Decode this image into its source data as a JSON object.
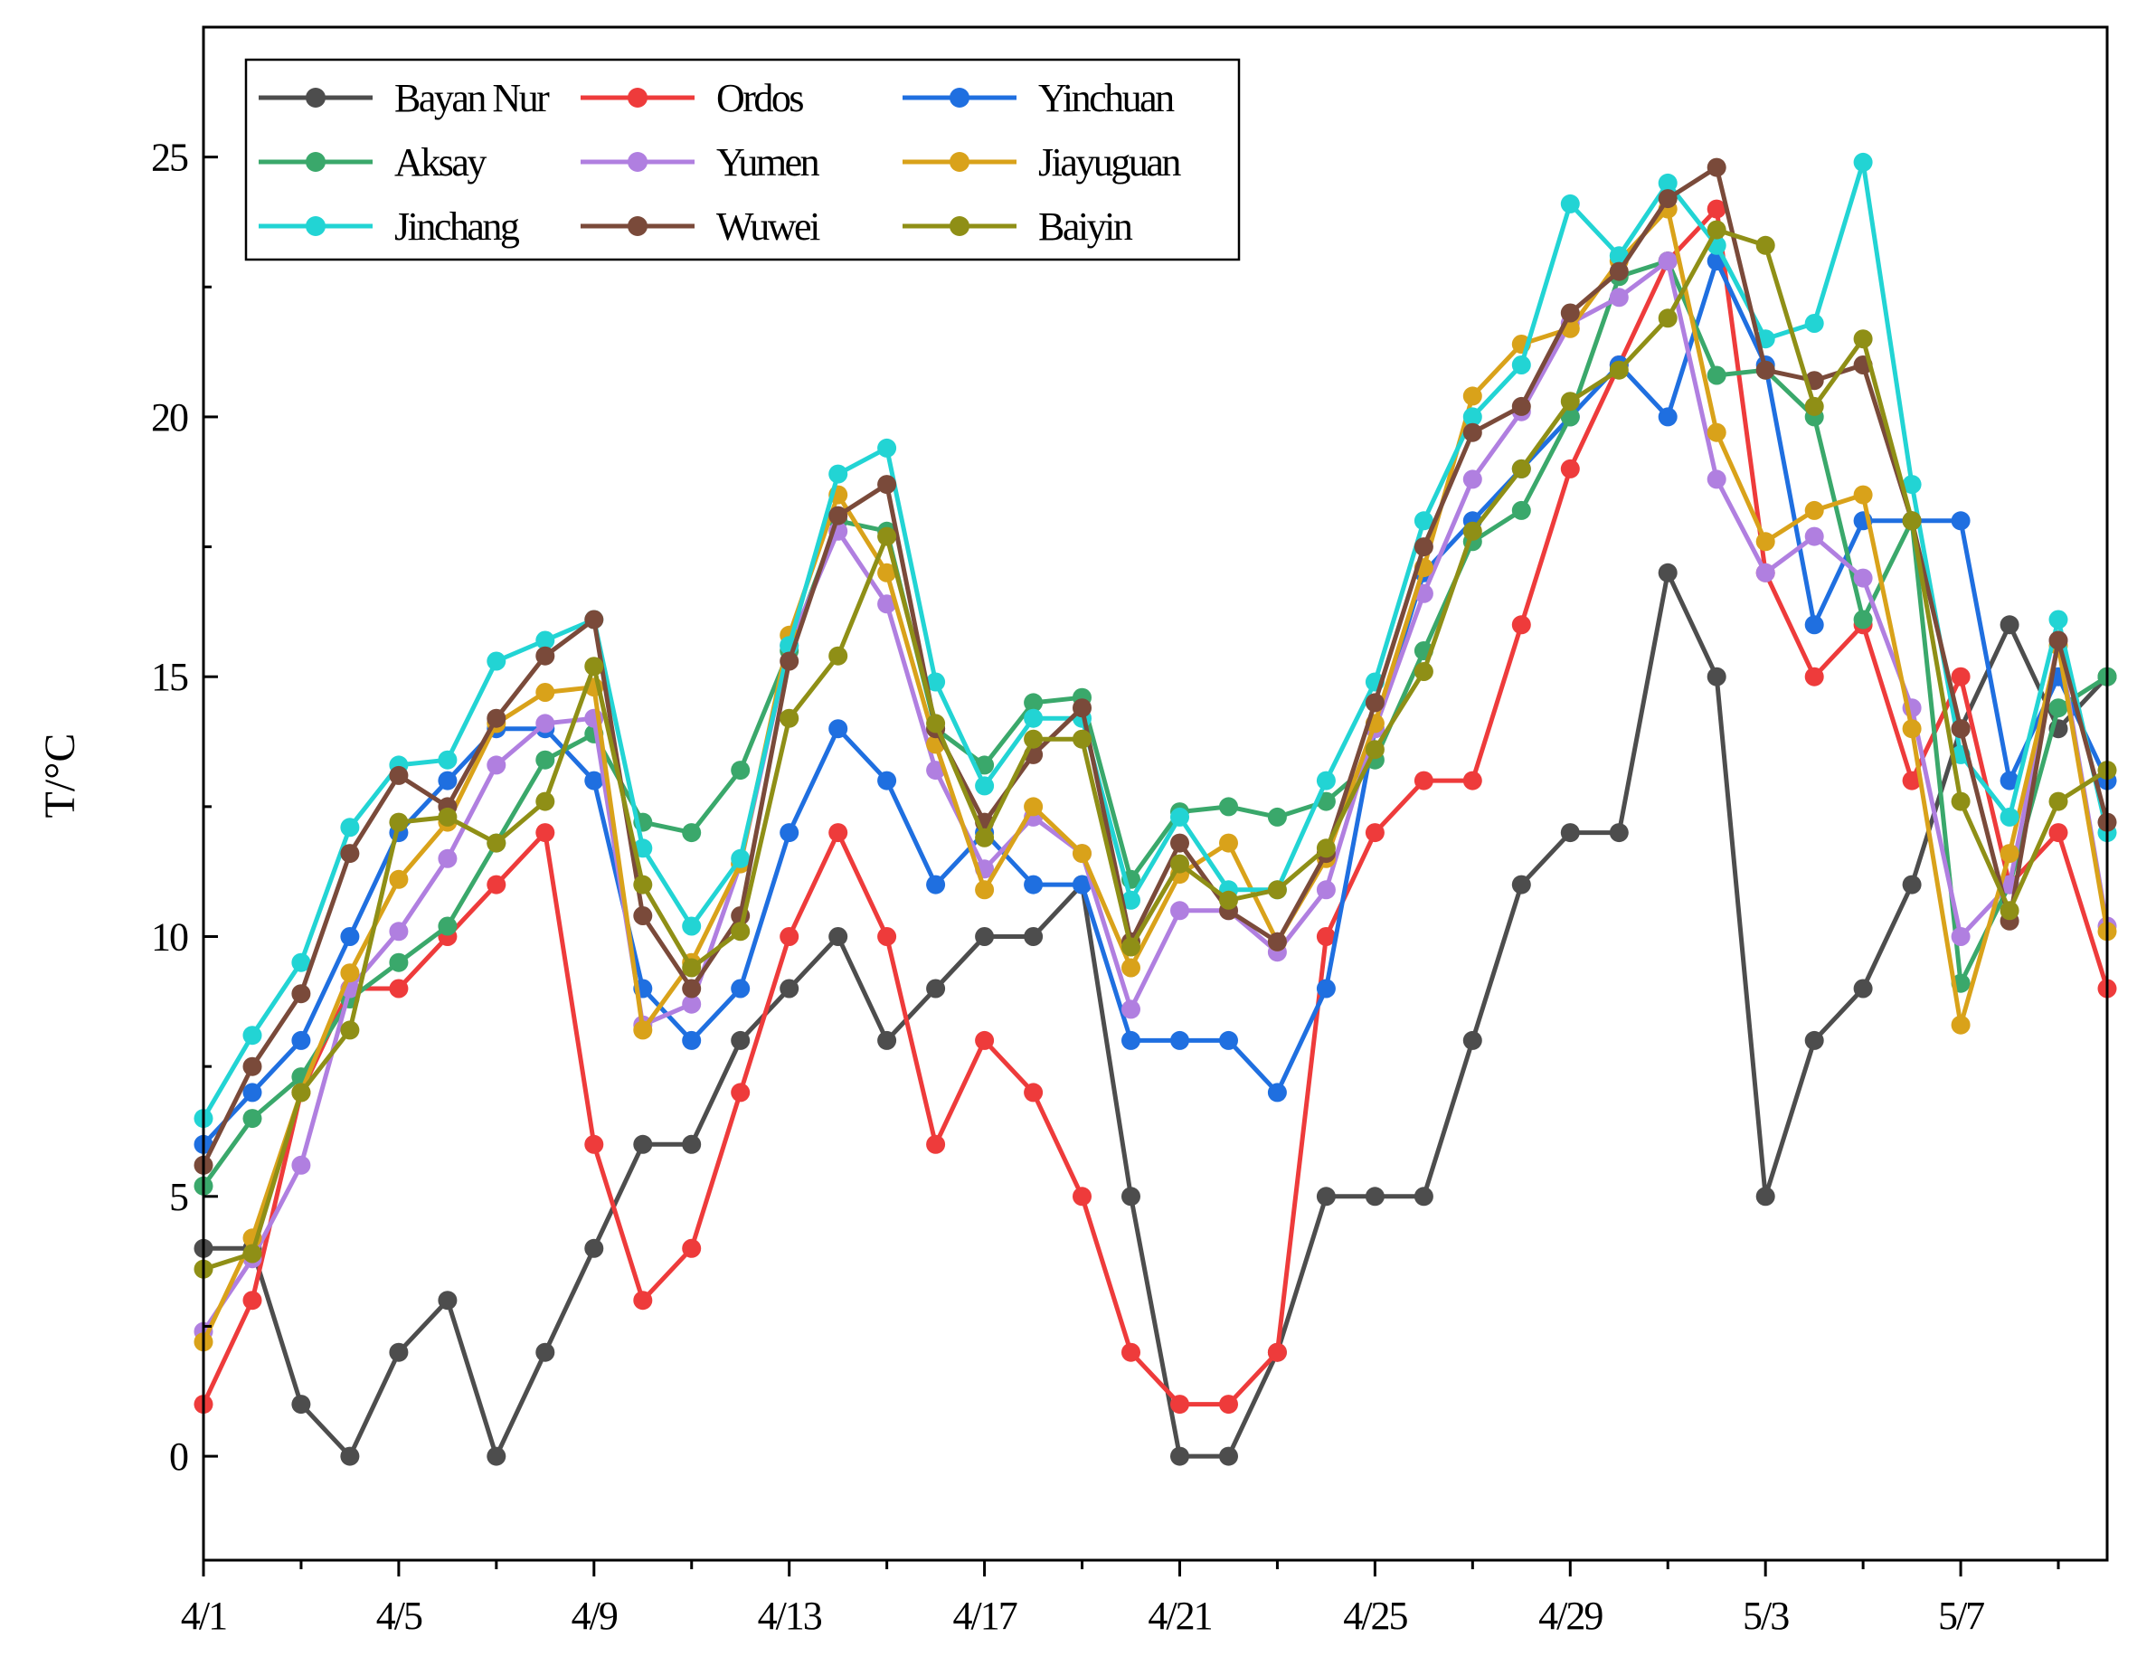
{
  "chart_data": {
    "type": "line",
    "title": "",
    "xlabel": "",
    "ylabel": "T/°C",
    "ylim": [
      -2,
      27.5
    ],
    "yticks": [
      0,
      5,
      10,
      15,
      20,
      25
    ],
    "xlim": [
      0,
      39
    ],
    "x_tick_labels": [
      "4/1",
      "4/5",
      "4/9",
      "4/13",
      "4/17",
      "4/21",
      "4/25",
      "4/29",
      "5/3",
      "5/7"
    ],
    "x_tick_positions": [
      0,
      4,
      8,
      12,
      16,
      20,
      24,
      28,
      32,
      36
    ],
    "legend_position": "top-left",
    "series": [
      {
        "name": "Bayan Nur",
        "color": "#4d4d4d",
        "values": [
          4,
          4,
          1,
          0,
          2,
          3,
          0,
          2,
          4,
          6,
          6,
          8,
          9,
          10,
          8,
          9,
          10,
          10,
          11,
          5,
          0,
          0,
          2,
          5,
          5,
          5,
          8,
          11,
          12,
          12,
          17,
          15,
          5,
          8,
          9,
          11,
          14,
          16,
          14,
          15
        ]
      },
      {
        "name": "Ordos",
        "color": "#ee3b3b",
        "values": [
          1,
          3,
          7,
          9,
          9,
          10,
          11,
          12,
          6,
          3,
          4,
          7,
          10,
          12,
          10,
          6,
          8,
          7,
          5,
          2,
          1,
          1,
          2,
          10,
          12,
          13,
          13,
          16,
          19,
          21,
          23,
          24,
          17,
          15,
          16,
          13,
          15,
          11,
          12,
          9
        ]
      },
      {
        "name": "Yinchuan",
        "color": "#1f6fe0",
        "values": [
          6,
          7,
          8,
          10,
          12,
          13,
          14,
          14,
          13,
          9,
          8,
          9,
          12,
          14,
          13,
          11,
          12,
          11,
          11,
          8,
          8,
          8,
          7,
          9,
          14,
          17,
          18,
          19,
          20,
          21,
          20,
          23,
          21,
          16,
          18,
          18,
          18,
          13,
          15,
          13
        ]
      },
      {
        "name": "Aksay",
        "color": "#3aa86b",
        "values": [
          5.2,
          6.5,
          7.3,
          8.8,
          9.5,
          10.2,
          11.8,
          13.4,
          13.9,
          12.2,
          12,
          13.2,
          15.5,
          18,
          17.8,
          14,
          13.3,
          14.5,
          14.6,
          11.1,
          12.4,
          12.5,
          12.3,
          12.6,
          13.4,
          15.5,
          17.6,
          18.2,
          20,
          22.7,
          23,
          20.8,
          20.9,
          20,
          16.1,
          18,
          9.1,
          11,
          14.4,
          15
        ]
      },
      {
        "name": "Yumen",
        "color": "#b07fe0",
        "values": [
          2.4,
          3.8,
          5.6,
          9,
          10.1,
          11.5,
          13.3,
          14.1,
          14.2,
          8.3,
          8.7,
          11.4,
          15.6,
          17.8,
          16.4,
          13.2,
          11.3,
          12.3,
          11.6,
          8.6,
          10.5,
          10.5,
          9.7,
          10.9,
          14,
          16.6,
          18.8,
          20.1,
          21.8,
          22.3,
          23,
          18.8,
          17,
          17.7,
          16.9,
          14.4,
          10,
          11,
          15.7,
          10.2
        ]
      },
      {
        "name": "Jiayuguan",
        "color": "#d9a21a",
        "values": [
          2.2,
          4.2,
          7,
          9.3,
          11.1,
          12.2,
          14.1,
          14.7,
          14.8,
          8.2,
          9.5,
          11.4,
          15.8,
          18.5,
          17,
          13.7,
          10.9,
          12.5,
          11.6,
          9.4,
          11.2,
          11.8,
          9.9,
          11.5,
          14.1,
          17.1,
          20.4,
          21.4,
          21.7,
          23,
          24,
          19.7,
          17.6,
          18.2,
          18.5,
          14,
          8.3,
          11.6,
          15.6,
          10.1
        ]
      },
      {
        "name": "Jinchang",
        "color": "#22d4d4",
        "values": [
          6.5,
          8.1,
          9.5,
          12.1,
          13.3,
          13.4,
          15.3,
          15.7,
          16.1,
          11.7,
          10.2,
          11.5,
          15.6,
          18.9,
          19.4,
          14.9,
          12.9,
          14.2,
          14.2,
          10.7,
          12.3,
          10.9,
          10.9,
          13,
          14.9,
          18,
          20,
          21,
          24.1,
          23.1,
          24.5,
          23.3,
          21.5,
          21.8,
          24.9,
          18.7,
          13.5,
          12.3,
          16.1,
          12
        ]
      },
      {
        "name": "Wuwei",
        "color": "#7a4a3a",
        "values": [
          5.6,
          7.5,
          8.9,
          11.6,
          13.1,
          12.5,
          14.2,
          15.4,
          16.1,
          10.4,
          9,
          10.4,
          15.3,
          18.1,
          18.7,
          14,
          12.2,
          13.5,
          14.4,
          9.9,
          11.8,
          10.5,
          9.9,
          11.6,
          14.5,
          17.5,
          19.7,
          20.2,
          22,
          22.8,
          24.2,
          24.8,
          20.9,
          20.7,
          21,
          18,
          14,
          10.3,
          15.7,
          12.2
        ]
      },
      {
        "name": "Baiyin",
        "color": "#8f8f16",
        "values": [
          3.6,
          3.9,
          7,
          8.2,
          12.2,
          12.3,
          11.8,
          12.6,
          15.2,
          11,
          9.4,
          10.1,
          14.2,
          15.4,
          17.7,
          14.1,
          11.9,
          13.8,
          13.8,
          9.8,
          11.4,
          10.7,
          10.9,
          11.7,
          13.6,
          15.1,
          17.8,
          19,
          20.3,
          20.9,
          21.9,
          23.6,
          23.3,
          20.2,
          21.5,
          18,
          12.6,
          10.5,
          12.6,
          13.2
        ]
      }
    ]
  }
}
